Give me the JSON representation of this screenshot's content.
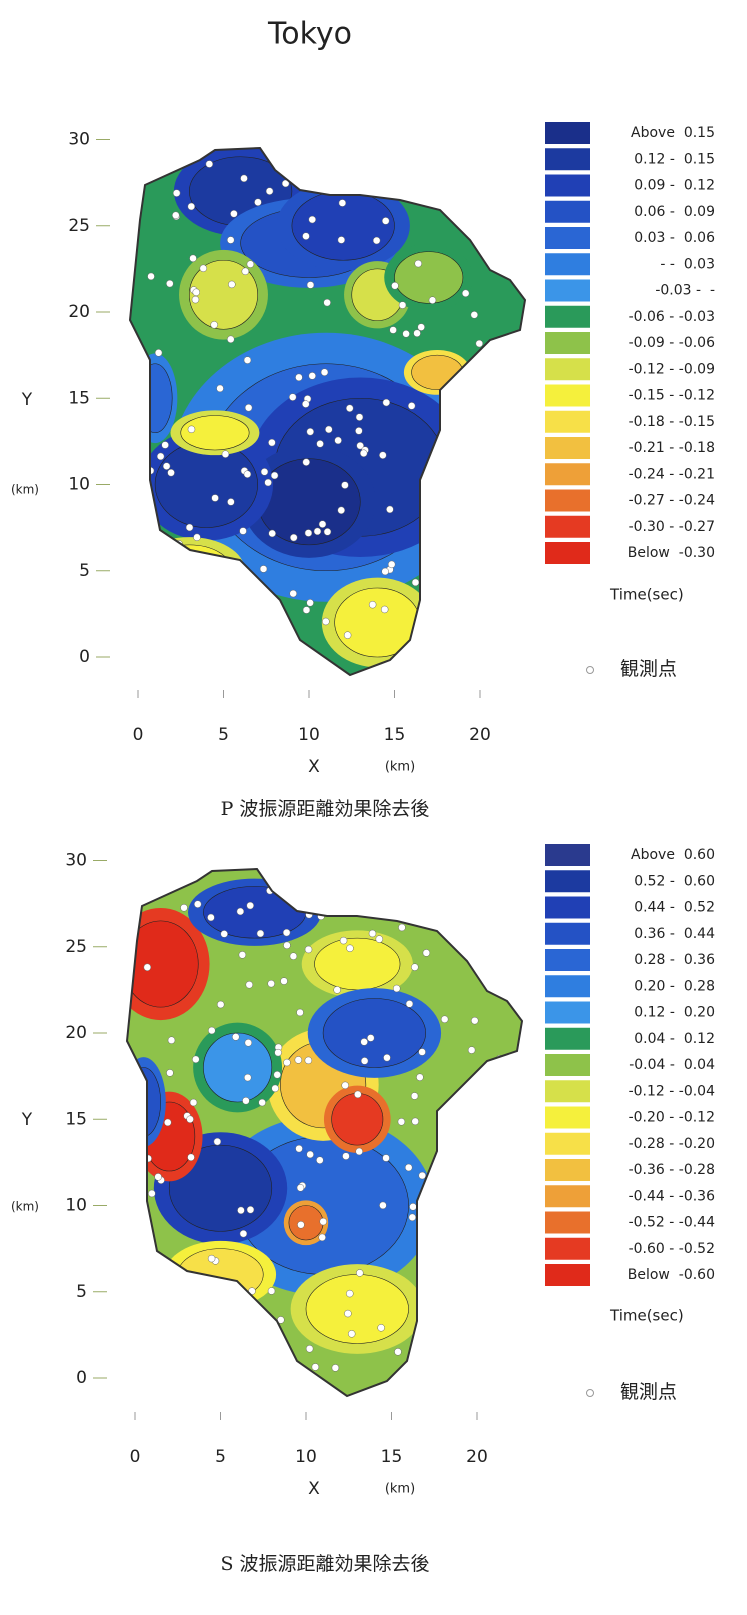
{
  "title": "Tokyo",
  "chart_data": [
    {
      "type": "contour",
      "caption": "P 波振源距離効果除去後",
      "x_label": "X",
      "x_unit": "(km)",
      "y_label": "Y",
      "y_unit": "(km)",
      "xlim": [
        0,
        20
      ],
      "ylim": [
        0,
        30
      ],
      "xticks": [
        0,
        5,
        10,
        15,
        20
      ],
      "yticks": [
        0,
        5,
        10,
        15,
        20,
        25,
        30
      ],
      "legend_title": "Time(sec)",
      "marker_label": "観測点",
      "legend": [
        {
          "label": "Above  0.15",
          "color": "#1a2f8a"
        },
        {
          "label": "0.12 -  0.15",
          "color": "#1c3aa0"
        },
        {
          "label": "0.09 -  0.12",
          "color": "#2040b5"
        },
        {
          "label": "0.06 -  0.09",
          "color": "#2452c5"
        },
        {
          "label": "0.03 -  0.06",
          "color": "#2a66d4"
        },
        {
          "label": "- -  0.03",
          "color": "#2f7ee0"
        },
        {
          "label": "-0.03 -  -",
          "color": "#3b95e8"
        },
        {
          "label": "-0.06 - -0.03",
          "color": "#2a9a5a"
        },
        {
          "label": "-0.09 - -0.06",
          "color": "#8ec24a"
        },
        {
          "label": "-0.12 - -0.09",
          "color": "#d6e04a"
        },
        {
          "label": "-0.15 - -0.12",
          "color": "#f5f03c"
        },
        {
          "label": "-0.18 - -0.15",
          "color": "#f7e048"
        },
        {
          "label": "-0.21 - -0.18",
          "color": "#f2c040"
        },
        {
          "label": "-0.24 - -0.21",
          "color": "#eea038"
        },
        {
          "label": "-0.27 - -0.24",
          "color": "#e8702c"
        },
        {
          "label": "-0.30 - -0.27",
          "color": "#e53a22"
        },
        {
          "label": "Below  -0.30",
          "color": "#e02a1a"
        }
      ]
    },
    {
      "type": "contour",
      "caption": "S 波振源距離効果除去後",
      "x_label": "X",
      "x_unit": "(km)",
      "y_label": "Y",
      "y_unit": "(km)",
      "xlim": [
        0,
        20
      ],
      "ylim": [
        0,
        30
      ],
      "xticks": [
        0,
        5,
        10,
        15,
        20
      ],
      "yticks": [
        0,
        5,
        10,
        15,
        20,
        25,
        30
      ],
      "legend_title": "Time(sec)",
      "marker_label": "観測点",
      "legend": [
        {
          "label": "Above  0.60",
          "color": "#2a3a8e"
        },
        {
          "label": "0.52 -  0.60",
          "color": "#1c3aa0"
        },
        {
          "label": "0.44 -  0.52",
          "color": "#2040b5"
        },
        {
          "label": "0.36 -  0.44",
          "color": "#2452c5"
        },
        {
          "label": "0.28 -  0.36",
          "color": "#2a66d4"
        },
        {
          "label": "0.20 -  0.28",
          "color": "#2f7ee0"
        },
        {
          "label": "0.12 -  0.20",
          "color": "#3b95e8"
        },
        {
          "label": "0.04 -  0.12",
          "color": "#2a9a5a"
        },
        {
          "label": "-0.04 -  0.04",
          "color": "#8ec24a"
        },
        {
          "label": "-0.12 - -0.04",
          "color": "#d6e04a"
        },
        {
          "label": "-0.20 - -0.12",
          "color": "#f5f03c"
        },
        {
          "label": "-0.28 - -0.20",
          "color": "#f7e048"
        },
        {
          "label": "-0.36 - -0.28",
          "color": "#f2c040"
        },
        {
          "label": "-0.44 - -0.36",
          "color": "#eea038"
        },
        {
          "label": "-0.52 - -0.44",
          "color": "#e8702c"
        },
        {
          "label": "-0.60 - -0.52",
          "color": "#e53a22"
        },
        {
          "label": "Below  -0.60",
          "color": "#e02a1a"
        }
      ]
    }
  ]
}
